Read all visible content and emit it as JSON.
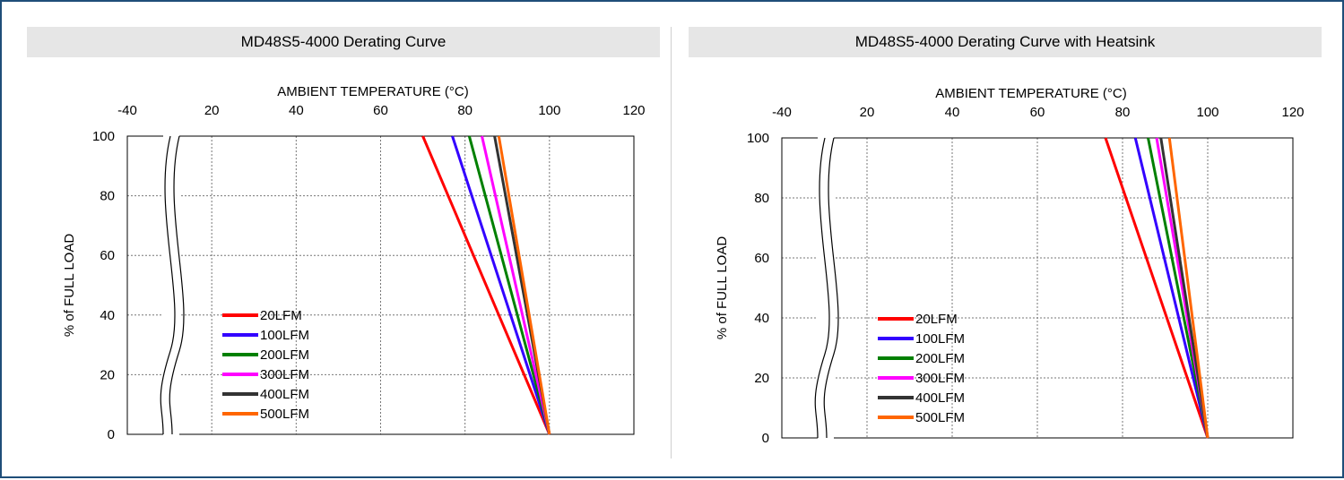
{
  "chart_data": [
    {
      "type": "line",
      "title": "MD48S5-4000 Derating Curve",
      "xlabel": "AMBIENT TEMPERATURE (°C)",
      "ylabel": "% of FULL LOAD",
      "x_ticks": [
        -40,
        20,
        40,
        60,
        80,
        100,
        120
      ],
      "y_ticks": [
        0,
        20,
        40,
        60,
        80,
        100
      ],
      "xlim": [
        0,
        120
      ],
      "ylim": [
        0,
        100
      ],
      "axis_break": "between -40 and 20",
      "grid": true,
      "legend_position": "bottom-left",
      "series": [
        {
          "name": "20LFM",
          "color": "#ff0000",
          "x": [
            70,
            100
          ],
          "y": [
            100,
            0
          ]
        },
        {
          "name": "100LFM",
          "color": "#3300ff",
          "x": [
            77,
            100
          ],
          "y": [
            100,
            0
          ]
        },
        {
          "name": "200LFM",
          "color": "#008000",
          "x": [
            81,
            100
          ],
          "y": [
            100,
            0
          ]
        },
        {
          "name": "300LFM",
          "color": "#ff00ff",
          "x": [
            84,
            100
          ],
          "y": [
            100,
            0
          ]
        },
        {
          "name": "400LFM",
          "color": "#333333",
          "x": [
            87,
            100
          ],
          "y": [
            100,
            0
          ]
        },
        {
          "name": "500LFM",
          "color": "#ff6600",
          "x": [
            88,
            100
          ],
          "y": [
            100,
            0
          ]
        }
      ]
    },
    {
      "type": "line",
      "title": "MD48S5-4000 Derating Curve with Heatsink",
      "xlabel": "AMBIENT TEMPERATURE (°C)",
      "ylabel": "% of FULL LOAD",
      "x_ticks": [
        -40,
        20,
        40,
        60,
        80,
        100,
        120
      ],
      "y_ticks": [
        0,
        20,
        40,
        60,
        80,
        100
      ],
      "xlim": [
        0,
        120
      ],
      "ylim": [
        0,
        100
      ],
      "axis_break": "between -40 and 20",
      "grid": true,
      "legend_position": "bottom-left",
      "series": [
        {
          "name": "20LFM",
          "color": "#ff0000",
          "x": [
            76,
            100
          ],
          "y": [
            100,
            0
          ]
        },
        {
          "name": "100LFM",
          "color": "#3300ff",
          "x": [
            83,
            100
          ],
          "y": [
            100,
            0
          ]
        },
        {
          "name": "200LFM",
          "color": "#008000",
          "x": [
            86,
            100
          ],
          "y": [
            100,
            0
          ]
        },
        {
          "name": "300LFM",
          "color": "#ff00ff",
          "x": [
            88,
            100
          ],
          "y": [
            100,
            0
          ]
        },
        {
          "name": "400LFM",
          "color": "#333333",
          "x": [
            89,
            100
          ],
          "y": [
            100,
            0
          ]
        },
        {
          "name": "500LFM",
          "color": "#ff6600",
          "x": [
            91,
            100
          ],
          "y": [
            100,
            0
          ]
        }
      ]
    }
  ]
}
